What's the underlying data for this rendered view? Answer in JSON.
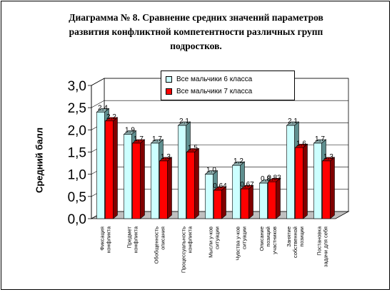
{
  "chart_data": {
    "type": "bar",
    "title": "Диаграмма № 8.   Сравнение средних значений параметров развития конфликтной компетентности различных групп подростков.",
    "title_lines": [
      "Диаграмма № 8.   Сравнение средних значений параметров",
      "развития конфликтной компетентности различных групп",
      "подростков."
    ],
    "ylabel": "Средний балл",
    "xlabel": "",
    "ylim": [
      0,
      3
    ],
    "yticks": [
      "0,0",
      "0,5",
      "1,0",
      "1,5",
      "2,0",
      "2,5",
      "3,0"
    ],
    "grid": true,
    "legend_position": "top-center",
    "categories": [
      [
        "Фиксация",
        "конфликта"
      ],
      [
        "Предмет",
        "конфликта"
      ],
      [
        "Обобщенность",
        "описания"
      ],
      [
        "Процессуальность",
        "конфликта"
      ],
      [
        "Мысли у-ков",
        "ситуации"
      ],
      [
        "Чувства у-ков",
        "ситуации"
      ],
      [
        "Описание",
        "позиций",
        "участников"
      ],
      [
        "Занятие",
        "собственной",
        "позиции"
      ],
      [
        "Постановка",
        "задачи для себя"
      ]
    ],
    "series": [
      {
        "name": "Все мальчики 6 класса",
        "color": "#ccffff",
        "side_color": "#5f8f8f",
        "top_color": "#8fb0b0",
        "values": [
          2.4,
          1.9,
          1.7,
          2.1,
          1.0,
          1.2,
          0.8,
          2.1,
          1.7
        ],
        "labels": [
          "2,4",
          "1,9",
          "1,7",
          "2,1",
          "1,0",
          "1,2",
          "0,8",
          "2,1",
          "1,7"
        ]
      },
      {
        "name": "Все мальчики 7 класса",
        "color": "#ff0000",
        "side_color": "#800000",
        "top_color": "#b30000",
        "values": [
          2.2,
          1.7,
          1.3,
          1.5,
          0.64,
          0.67,
          0.83,
          1.6,
          1.3
        ],
        "labels": [
          "2,2",
          "1,7",
          "1,3",
          "1,5",
          "0,64",
          "0,67",
          "0,83",
          "1,6",
          "1,3"
        ]
      }
    ],
    "floor_color": "#c0c0c0",
    "wall_color": "#ffffff"
  }
}
